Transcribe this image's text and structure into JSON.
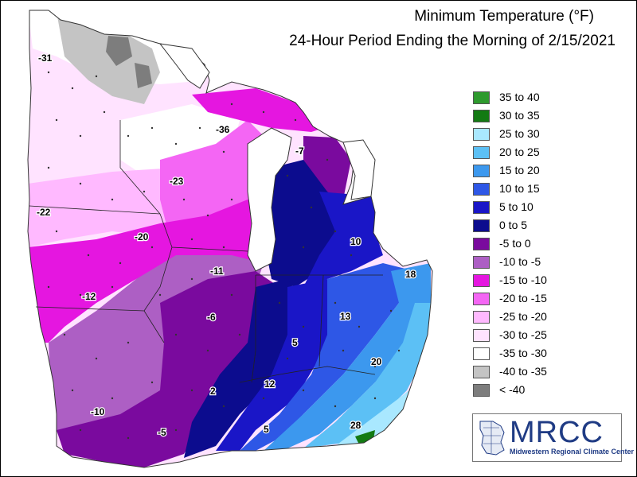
{
  "title": "Minimum Temperature (°F)",
  "subtitle": "24-Hour Period Ending the Morning of 2/15/2021",
  "legend": [
    {
      "label": "35 to 40",
      "color": "#2e9a2e"
    },
    {
      "label": "30 to 35",
      "color": "#137a13"
    },
    {
      "label": "25 to 30",
      "color": "#a9e8ff"
    },
    {
      "label": "20 to 25",
      "color": "#5cc0f5"
    },
    {
      "label": "15 to 20",
      "color": "#3c98ee"
    },
    {
      "label": "10 to 15",
      "color": "#2e57e6"
    },
    {
      "label": "5 to 10",
      "color": "#1a16c7"
    },
    {
      "label": "0 to 5",
      "color": "#0c0c8e"
    },
    {
      "label": "-5 to 0",
      "color": "#7a0a9e"
    },
    {
      "label": "-10 to -5",
      "color": "#ad5fc4"
    },
    {
      "label": "-15 to -10",
      "color": "#e516e0"
    },
    {
      "label": "-20 to -15",
      "color": "#f466f4"
    },
    {
      "label": "-25 to -20",
      "color": "#ffb9ff"
    },
    {
      "label": "-30 to -25",
      "color": "#ffe3ff"
    },
    {
      "label": "-35 to -30",
      "color": "#ffffff"
    },
    {
      "label": "-40 to -35",
      "color": "#c4c4c4"
    },
    {
      "label": "< -40",
      "color": "#7d7d7d"
    }
  ],
  "map_values": [
    "-31",
    "-36",
    "-23",
    "-22",
    "-20",
    "-11",
    "-12",
    "-6",
    "-7",
    "10",
    "18",
    "13",
    "5",
    "20",
    "12",
    "2",
    "-10",
    "-5",
    "5",
    "28"
  ],
  "logo": {
    "text": "MRCC",
    "subtitle": "Midwestern Regional Climate Center"
  }
}
